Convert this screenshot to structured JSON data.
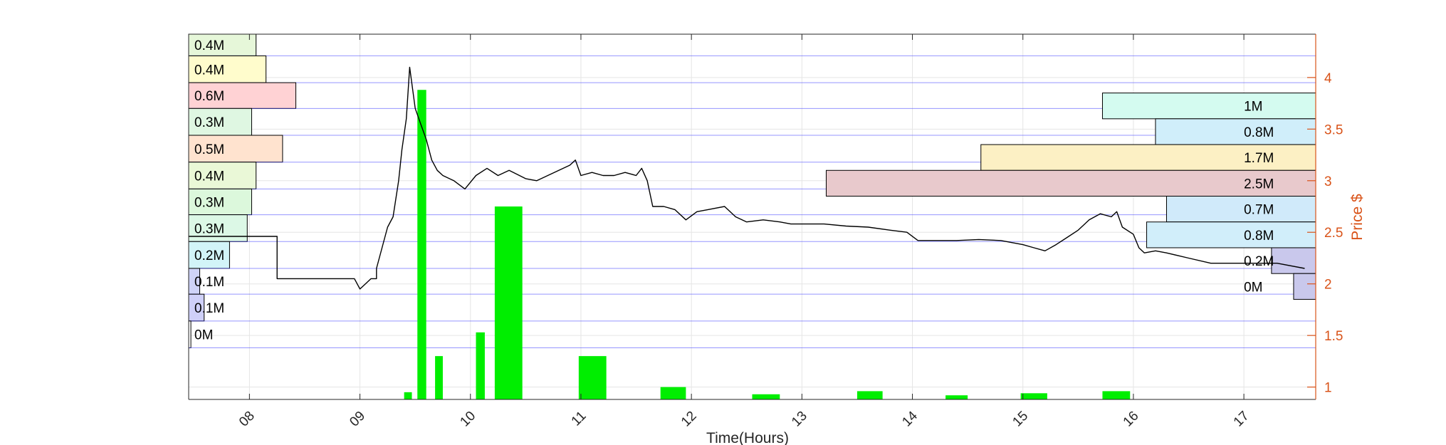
{
  "chart_data": {
    "type": "line",
    "title": "",
    "xlabel": "Time(Hours)",
    "ylabel_right": "Price $",
    "x_ticks": [
      "08",
      "09",
      "10",
      "11",
      "12",
      "13",
      "14",
      "15",
      "16",
      "17"
    ],
    "xlim": [
      7.45,
      17.65
    ],
    "y_ticks": [
      1,
      1.5,
      2,
      2.5,
      3,
      3.5,
      4
    ],
    "ylim": [
      0.88,
      4.42
    ],
    "grid": true,
    "price_series": {
      "name": "",
      "color": "#000000",
      "points": [
        [
          7.45,
          2.46
        ],
        [
          7.95,
          2.46
        ],
        [
          8.25,
          2.46
        ],
        [
          8.25,
          2.05
        ],
        [
          8.9,
          2.05
        ],
        [
          8.95,
          2.05
        ],
        [
          9.0,
          1.95
        ],
        [
          9.1,
          2.05
        ],
        [
          9.15,
          2.05
        ],
        [
          9.15,
          2.15
        ],
        [
          9.2,
          2.35
        ],
        [
          9.25,
          2.55
        ],
        [
          9.3,
          2.65
        ],
        [
          9.35,
          3.0
        ],
        [
          9.38,
          3.3
        ],
        [
          9.42,
          3.6
        ],
        [
          9.45,
          4.1
        ],
        [
          9.5,
          3.7
        ],
        [
          9.55,
          3.55
        ],
        [
          9.6,
          3.4
        ],
        [
          9.65,
          3.2
        ],
        [
          9.7,
          3.1
        ],
        [
          9.75,
          3.05
        ],
        [
          9.85,
          3.0
        ],
        [
          9.95,
          2.92
        ],
        [
          10.05,
          3.05
        ],
        [
          10.15,
          3.12
        ],
        [
          10.25,
          3.05
        ],
        [
          10.35,
          3.1
        ],
        [
          10.5,
          3.02
        ],
        [
          10.6,
          3.0
        ],
        [
          10.7,
          3.05
        ],
        [
          10.8,
          3.1
        ],
        [
          10.9,
          3.15
        ],
        [
          10.95,
          3.2
        ],
        [
          11.0,
          3.05
        ],
        [
          11.1,
          3.08
        ],
        [
          11.2,
          3.05
        ],
        [
          11.3,
          3.05
        ],
        [
          11.4,
          3.08
        ],
        [
          11.5,
          3.05
        ],
        [
          11.55,
          3.12
        ],
        [
          11.6,
          3.0
        ],
        [
          11.65,
          2.75
        ],
        [
          11.75,
          2.75
        ],
        [
          11.85,
          2.72
        ],
        [
          11.95,
          2.62
        ],
        [
          12.05,
          2.7
        ],
        [
          12.15,
          2.72
        ],
        [
          12.3,
          2.75
        ],
        [
          12.4,
          2.65
        ],
        [
          12.5,
          2.6
        ],
        [
          12.65,
          2.62
        ],
        [
          12.8,
          2.6
        ],
        [
          12.9,
          2.58
        ],
        [
          13.0,
          2.58
        ],
        [
          13.2,
          2.58
        ],
        [
          13.4,
          2.56
        ],
        [
          13.6,
          2.55
        ],
        [
          13.8,
          2.52
        ],
        [
          13.95,
          2.5
        ],
        [
          14.05,
          2.42
        ],
        [
          14.2,
          2.42
        ],
        [
          14.4,
          2.42
        ],
        [
          14.6,
          2.43
        ],
        [
          14.8,
          2.42
        ],
        [
          15.0,
          2.38
        ],
        [
          15.1,
          2.35
        ],
        [
          15.2,
          2.32
        ],
        [
          15.3,
          2.38
        ],
        [
          15.4,
          2.45
        ],
        [
          15.5,
          2.52
        ],
        [
          15.6,
          2.62
        ],
        [
          15.7,
          2.68
        ],
        [
          15.8,
          2.65
        ],
        [
          15.85,
          2.7
        ],
        [
          15.9,
          2.55
        ],
        [
          16.0,
          2.48
        ],
        [
          16.05,
          2.35
        ],
        [
          16.1,
          2.3
        ],
        [
          16.2,
          2.32
        ],
        [
          16.3,
          2.3
        ],
        [
          16.5,
          2.25
        ],
        [
          16.7,
          2.2
        ],
        [
          16.9,
          2.2
        ],
        [
          17.1,
          2.2
        ],
        [
          17.3,
          2.2
        ],
        [
          17.55,
          2.15
        ]
      ]
    },
    "volume_bars": {
      "color": "#00ee00",
      "bars": [
        {
          "x0": 9.4,
          "x1": 9.47,
          "value": 0.95
        },
        {
          "x0": 9.52,
          "x1": 9.6,
          "value": 3.88
        },
        {
          "x0": 9.68,
          "x1": 9.75,
          "value": 1.3
        },
        {
          "x0": 10.05,
          "x1": 10.13,
          "value": 1.53
        },
        {
          "x0": 10.22,
          "x1": 10.47,
          "value": 2.75
        },
        {
          "x0": 10.98,
          "x1": 11.23,
          "value": 1.3
        },
        {
          "x0": 11.72,
          "x1": 11.95,
          "value": 1.0
        },
        {
          "x0": 12.55,
          "x1": 12.8,
          "value": 0.93
        },
        {
          "x0": 13.5,
          "x1": 13.73,
          "value": 0.96
        },
        {
          "x0": 14.3,
          "x1": 14.5,
          "value": 0.92
        },
        {
          "x0": 14.98,
          "x1": 15.22,
          "value": 0.94
        },
        {
          "x0": 15.72,
          "x1": 15.97,
          "value": 0.96
        }
      ]
    },
    "volume_profile": {
      "left": [
        {
          "label": "0.4M",
          "y0": 4.21,
          "y1": 4.42,
          "extent": 8.06,
          "color": "#e6f7d9"
        },
        {
          "label": "0.4M",
          "y0": 3.95,
          "y1": 4.21,
          "extent": 8.15,
          "color": "#fffccc"
        },
        {
          "label": "0.6M",
          "y0": 3.7,
          "y1": 3.95,
          "extent": 8.42,
          "color": "#ffd2d4"
        },
        {
          "label": "0.3M",
          "y0": 3.44,
          "y1": 3.7,
          "extent": 8.02,
          "color": "#dff7e2"
        },
        {
          "label": "0.5M",
          "y0": 3.18,
          "y1": 3.44,
          "extent": 8.3,
          "color": "#ffe3cf"
        },
        {
          "label": "0.4M",
          "y0": 2.92,
          "y1": 3.18,
          "extent": 8.06,
          "color": "#eaf8d7"
        },
        {
          "label": "0.3M",
          "y0": 2.67,
          "y1": 2.92,
          "extent": 8.02,
          "color": "#dcf8dc"
        },
        {
          "label": "0.3M",
          "y0": 2.41,
          "y1": 2.67,
          "extent": 7.98,
          "color": "#dcf8e6"
        },
        {
          "label": "0.2M",
          "y0": 2.15,
          "y1": 2.41,
          "extent": 7.82,
          "color": "#d2f4f8"
        },
        {
          "label": "0.1M",
          "y0": 1.9,
          "y1": 2.15,
          "extent": 7.55,
          "color": "#cfd3f8"
        },
        {
          "label": "0.1M",
          "y0": 1.64,
          "y1": 1.9,
          "extent": 7.59,
          "color": "#cfd0f8"
        },
        {
          "label": "0M",
          "y0": 1.38,
          "y1": 1.64,
          "extent": 7.47,
          "color": "#ffffff"
        }
      ],
      "right": [
        {
          "label": "1M",
          "y0": 3.6,
          "y1": 3.85,
          "extent": 15.72,
          "color": "#d4fbf0"
        },
        {
          "label": "0.8M",
          "y0": 3.35,
          "y1": 3.6,
          "extent": 16.2,
          "color": "#d0eefa"
        },
        {
          "label": "1.7M",
          "y0": 3.1,
          "y1": 3.35,
          "extent": 14.62,
          "color": "#fcf0c4"
        },
        {
          "label": "2.5M",
          "y0": 2.85,
          "y1": 3.1,
          "extent": 13.22,
          "color": "#e8c9cc"
        },
        {
          "label": "0.7M",
          "y0": 2.6,
          "y1": 2.85,
          "extent": 16.3,
          "color": "#d0eafa"
        },
        {
          "label": "0.8M",
          "y0": 2.35,
          "y1": 2.6,
          "extent": 16.12,
          "color": "#d1eefa"
        },
        {
          "label": "0.2M",
          "y0": 2.1,
          "y1": 2.35,
          "extent": 17.25,
          "color": "#c9c8ec"
        },
        {
          "label": "0M",
          "y0": 1.85,
          "y1": 2.1,
          "extent": 17.45,
          "color": "#c9c8ec"
        }
      ]
    },
    "colors": {
      "axis_right": "#d95319",
      "grid": "#e5e5e5",
      "profile_lines": "#4040ff",
      "price": "#000000",
      "volume": "#00ee00"
    }
  }
}
